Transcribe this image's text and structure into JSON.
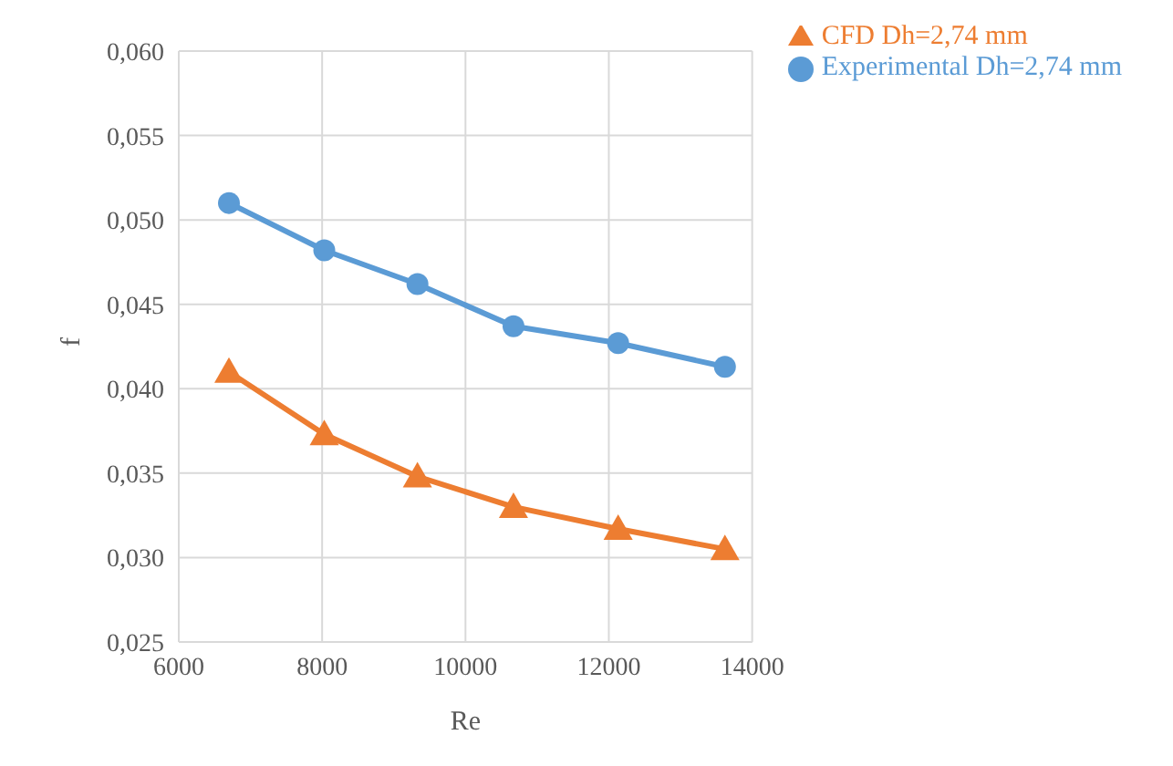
{
  "chart_data": {
    "type": "line",
    "xlabel": "Re",
    "ylabel": "f",
    "series": [
      {
        "name": "Experimental Dh=2,74 mm",
        "color": "#5b9bd5",
        "marker": "circle",
        "x": [
          6700,
          8030,
          9330,
          10670,
          12130,
          13620
        ],
        "values": [
          0.051,
          0.0482,
          0.0462,
          0.0437,
          0.0427,
          0.0413
        ]
      },
      {
        "name": "CFD Dh=2,74 mm",
        "color": "#ed7d31",
        "marker": "triangle",
        "x": [
          6700,
          8030,
          9330,
          10670,
          12130,
          13620
        ],
        "values": [
          0.041,
          0.0373,
          0.0348,
          0.033,
          0.0317,
          0.0305
        ]
      }
    ],
    "xlim": [
      6000,
      14000
    ],
    "xticks": [
      6000,
      8000,
      10000,
      12000,
      14000
    ],
    "ylim": [
      0.025,
      0.06
    ],
    "yticks": [
      {
        "value": 0.025,
        "label": "0,025"
      },
      {
        "value": 0.03,
        "label": "0,030"
      },
      {
        "value": 0.035,
        "label": "0,035"
      },
      {
        "value": 0.04,
        "label": "0,040"
      },
      {
        "value": 0.045,
        "label": "0,045"
      },
      {
        "value": 0.05,
        "label": "0,050"
      },
      {
        "value": 0.055,
        "label": "0,055"
      },
      {
        "value": 0.06,
        "label": "0,060"
      }
    ],
    "grid": true,
    "legend": "top right",
    "line_style": "solid"
  }
}
